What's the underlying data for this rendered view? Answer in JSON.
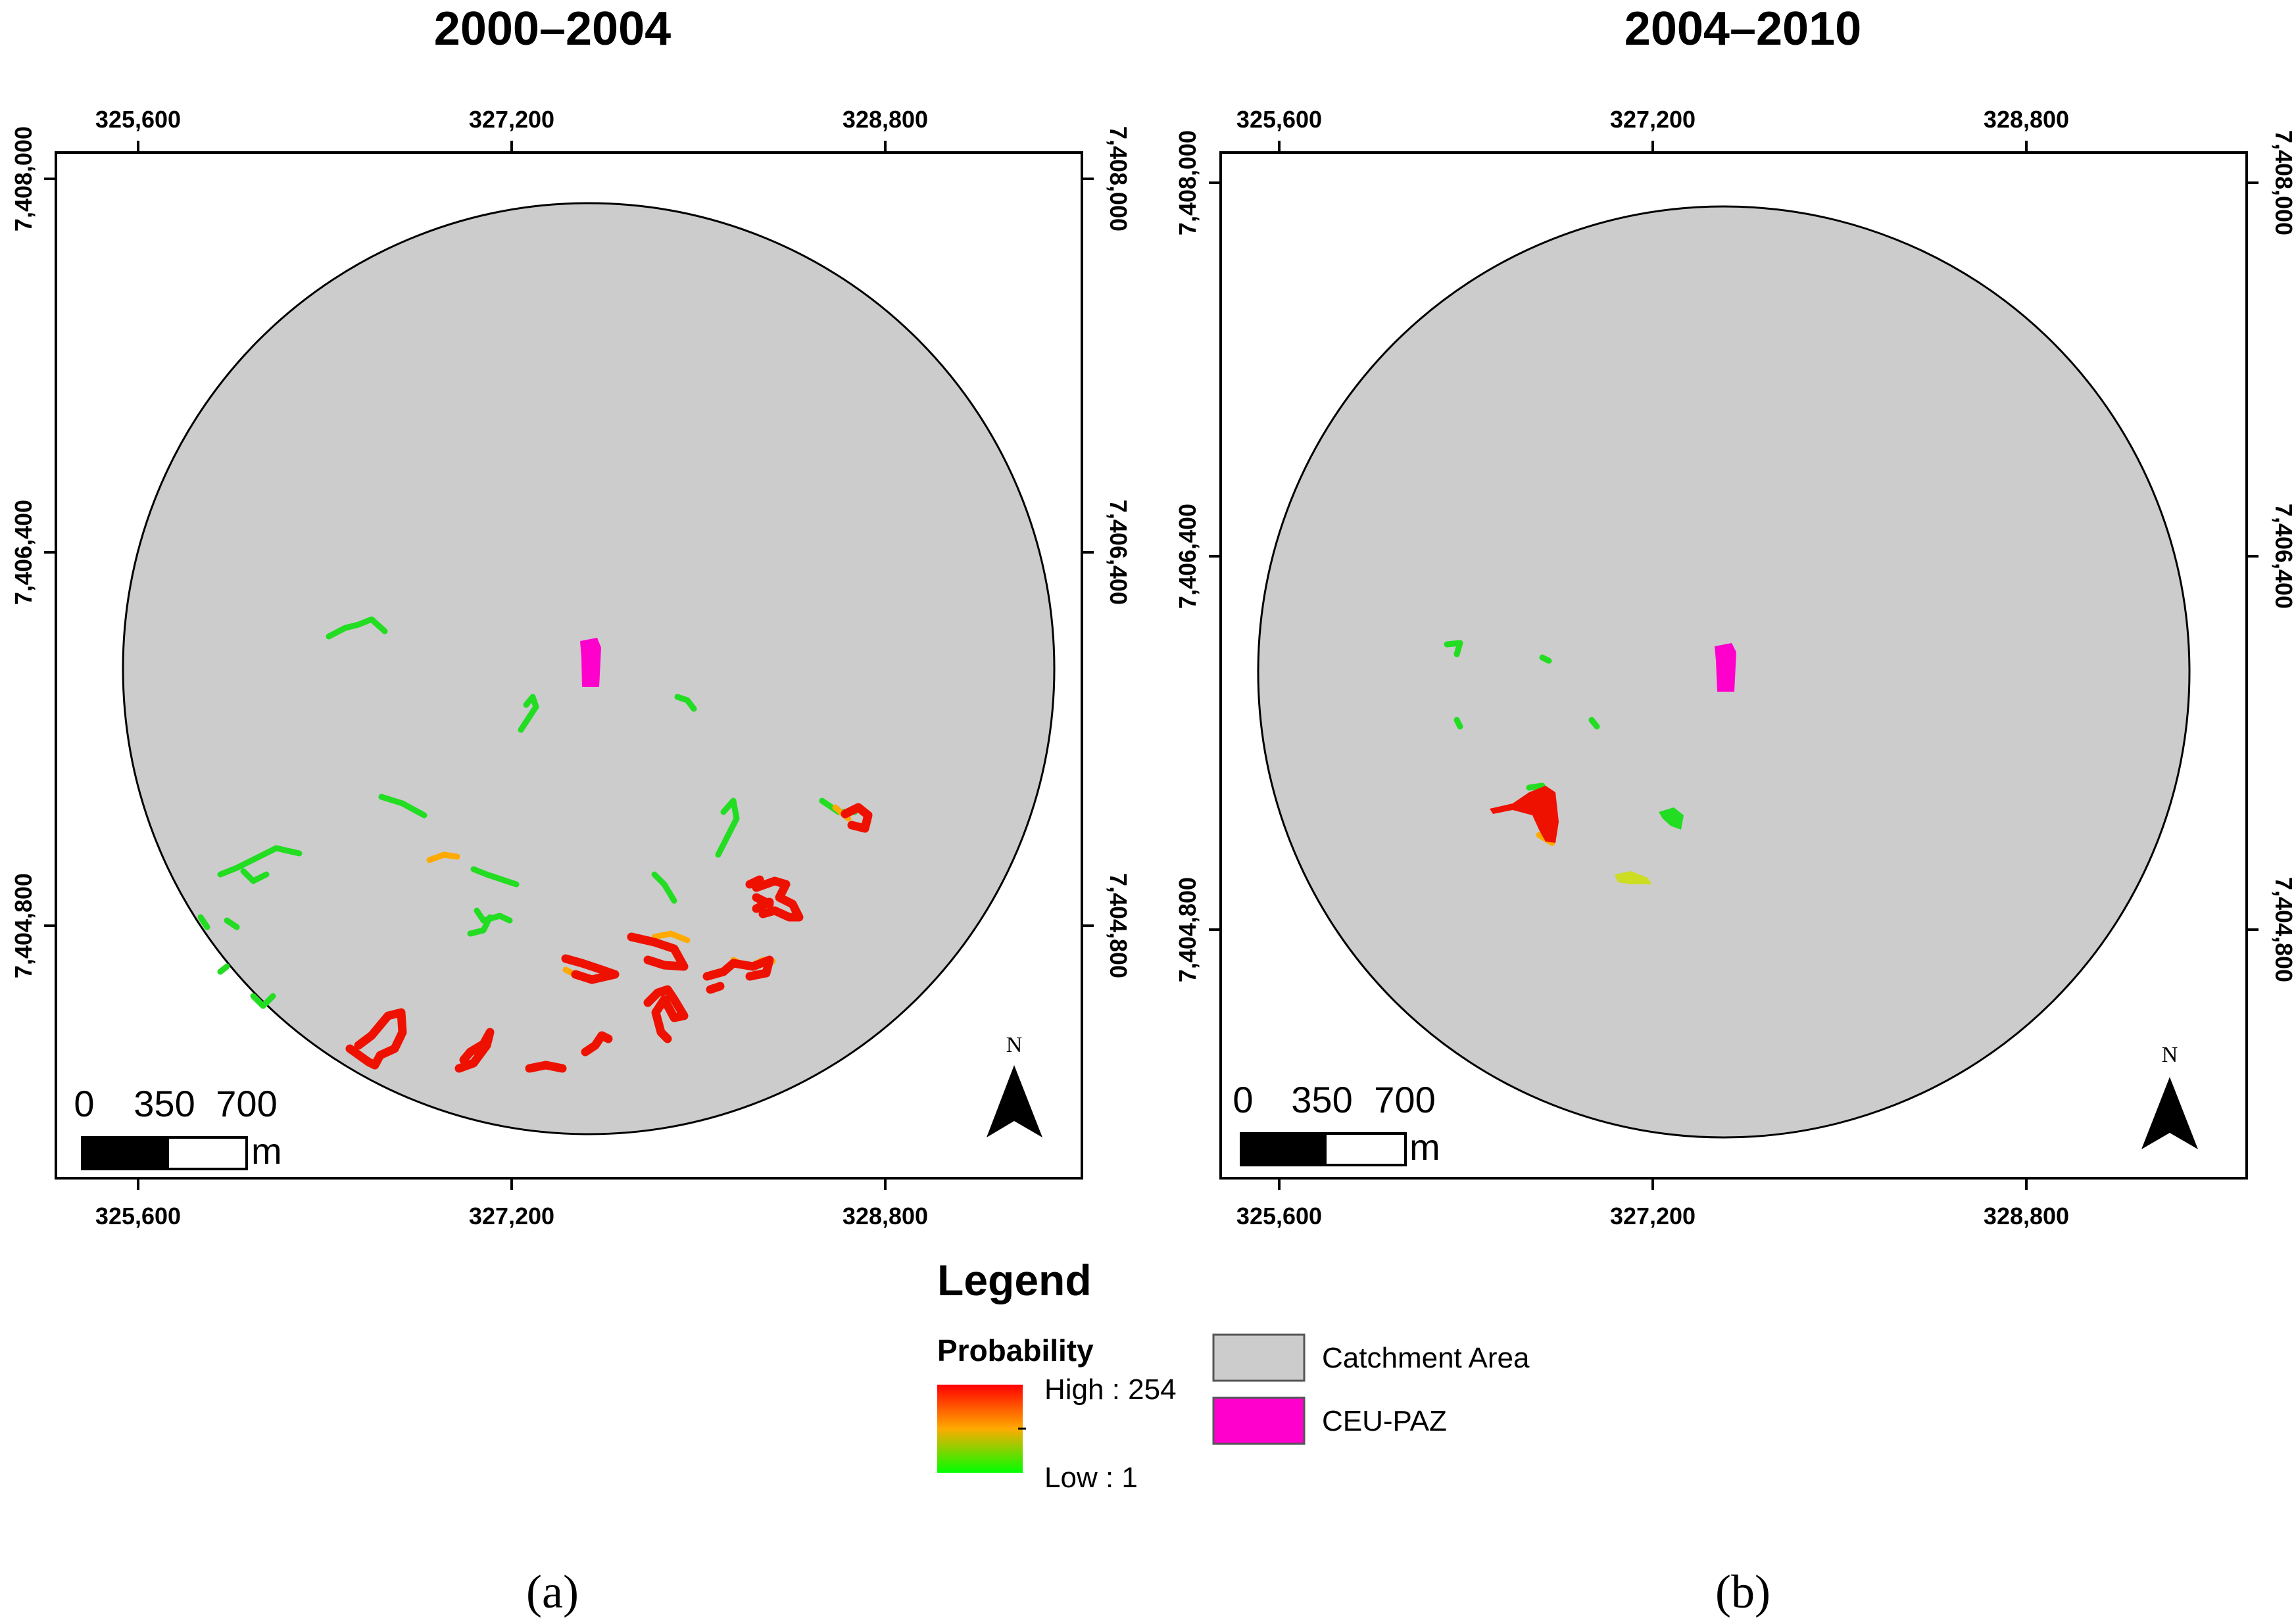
{
  "panels": [
    {
      "id": "a",
      "title": "2000–2004",
      "panel_label": "(a)",
      "x_ticks": [
        "325,600",
        "327,200",
        "328,800"
      ],
      "y_ticks": [
        "7,408,000",
        "7,406,400",
        "7,404,800"
      ],
      "scale_labels": [
        "0",
        "350",
        "700"
      ],
      "scale_unit": "m",
      "north_label": "N"
    },
    {
      "id": "b",
      "title": "2004–2010",
      "panel_label": "(b)",
      "x_ticks": [
        "325,600",
        "327,200",
        "328,800"
      ],
      "y_ticks": [
        "7,408,000",
        "7,406,400",
        "7,404,800"
      ],
      "scale_labels": [
        "0",
        "350",
        "700"
      ],
      "scale_unit": "m",
      "north_label": "N"
    }
  ],
  "legend": {
    "title": "Legend",
    "probability_title": "Probability",
    "high_label": "High : 254",
    "low_label": "Low : 1",
    "items": [
      {
        "label": "Catchment Area",
        "color": "#cccccc"
      },
      {
        "label": "CEU-PAZ",
        "color": "#ff00cc"
      }
    ]
  },
  "colors": {
    "catchment": "#cccccc",
    "ceu_paz": "#ff00cc",
    "high": "#ff0000",
    "mid": "#ffaa00",
    "low": "#00ff00"
  }
}
